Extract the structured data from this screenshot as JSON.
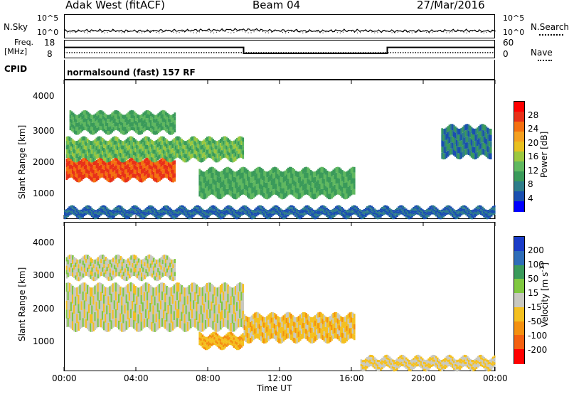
{
  "header": {
    "radar_title": "Adak West (fitACF)",
    "beam": "Beam 04",
    "date": "27/Mar/2016"
  },
  "noise_panel": {
    "left_label": "N.Sky",
    "right_label": "N.Search",
    "ticks_left": [
      "10^5",
      "10^0"
    ],
    "ticks_right": [
      "10^5",
      "10^0"
    ]
  },
  "freq_panel": {
    "label_line1": "Freq.",
    "label_line2": "[MHz]",
    "ticks_left": [
      "18",
      "8"
    ],
    "ticks_right": [
      "60",
      "0"
    ],
    "right_label": "Nave"
  },
  "cpid_panel": {
    "label": "CPID",
    "text": "normalsound (fast) 157 RF"
  },
  "power_panel": {
    "ylabel": "Slant Range [km]",
    "yticks": [
      "4000",
      "3000",
      "2000",
      "1000"
    ],
    "colorbar_label": "Power [dB]",
    "colorbar_ticks": [
      "28",
      "24",
      "20",
      "16",
      "12",
      "8",
      "4"
    ],
    "colors": [
      "#0000ff",
      "#1a4fb0",
      "#2e7d8a",
      "#3a9a5a",
      "#60b860",
      "#9cc840",
      "#e8c020",
      "#f4a020",
      "#f47010",
      "#e83018",
      "#ff0000"
    ]
  },
  "velocity_panel": {
    "ylabel": "Slant Range [km]",
    "yticks": [
      "4000",
      "3000",
      "2000",
      "1000"
    ],
    "colorbar_label": "Velocity [m s",
    "colorbar_label_sup": "-1",
    "colorbar_label_end": "]",
    "colorbar_ticks": [
      "200",
      "100",
      "50",
      "15",
      "-15",
      "-50",
      "-100",
      "-200"
    ],
    "colors": [
      "#1a3cc8",
      "#2e6db8",
      "#3a9a5a",
      "#80c840",
      "#c8c8c0",
      "#f4c020",
      "#f49010",
      "#f46010",
      "#ff0000"
    ]
  },
  "time_axis": {
    "xlabel": "Time UT",
    "ticks": [
      "00:00",
      "04:00",
      "08:00",
      "12:00",
      "16:00",
      "20:00",
      "00:00"
    ]
  },
  "chart_data": [
    {
      "type": "line",
      "title": "N.Sky / N.Search",
      "x_range_hours": [
        0,
        24
      ],
      "series": [
        {
          "name": "N.Sky",
          "x": [
            0,
            2,
            4,
            6,
            8,
            10,
            12,
            14,
            16,
            18,
            20,
            22,
            24
          ],
          "y": [
            1.5,
            1.6,
            1.5,
            1.6,
            1.7,
            1.8,
            1.6,
            1.5,
            1.6,
            1.5,
            1.5,
            1.6,
            1.5
          ]
        }
      ],
      "ylim": [
        0,
        5
      ]
    },
    {
      "type": "line",
      "title": "Freq.",
      "x_range_hours": [
        0,
        24
      ],
      "series": [
        {
          "name": "Freq.",
          "x": [
            0,
            10,
            10,
            18,
            18,
            24
          ],
          "y": [
            14,
            14,
            10.5,
            10.5,
            14,
            14
          ]
        }
      ],
      "ylim": [
        8,
        18
      ]
    },
    {
      "type": "heatmap",
      "title": "Power [dB]",
      "x_range_hours": [
        0,
        24
      ],
      "ylim": [
        0,
        4500
      ],
      "clim": [
        0,
        30
      ],
      "echo_regions": [
        {
          "t0": 0.1,
          "t1": 6.2,
          "r0": 1250,
          "r1": 1950,
          "value": 26
        },
        {
          "t0": 0.1,
          "t1": 10.0,
          "r0": 1900,
          "r1": 2600,
          "value": 12
        },
        {
          "t0": 0.3,
          "t1": 6.2,
          "r0": 2800,
          "r1": 3450,
          "value": 10
        },
        {
          "t0": 7.5,
          "t1": 16.2,
          "r0": 700,
          "r1": 1600,
          "value": 10
        },
        {
          "t0": 21.0,
          "t1": 23.8,
          "r0": 2000,
          "r1": 3000,
          "value": 6
        },
        {
          "t0": 0.0,
          "t1": 24.0,
          "r0": 50,
          "r1": 350,
          "value": 4
        }
      ]
    },
    {
      "type": "heatmap",
      "title": "Velocity",
      "x_range_hours": [
        0,
        24
      ],
      "ylim": [
        0,
        4500
      ],
      "clim": [
        -250,
        250
      ],
      "echo_regions": [
        {
          "t0": 0.1,
          "t1": 6.2,
          "r0": 2800,
          "r1": 3450,
          "value": 0
        },
        {
          "t0": 0.1,
          "t1": 10.0,
          "r0": 1250,
          "r1": 2600,
          "value": 0
        },
        {
          "t0": 7.5,
          "t1": 10.0,
          "r0": 700,
          "r1": 1100,
          "value": -80
        },
        {
          "t0": 10.0,
          "t1": 16.2,
          "r0": 900,
          "r1": 1700,
          "value": -60
        },
        {
          "t0": 16.5,
          "t1": 24.0,
          "r0": 50,
          "r1": 400,
          "value": -30
        }
      ]
    }
  ]
}
